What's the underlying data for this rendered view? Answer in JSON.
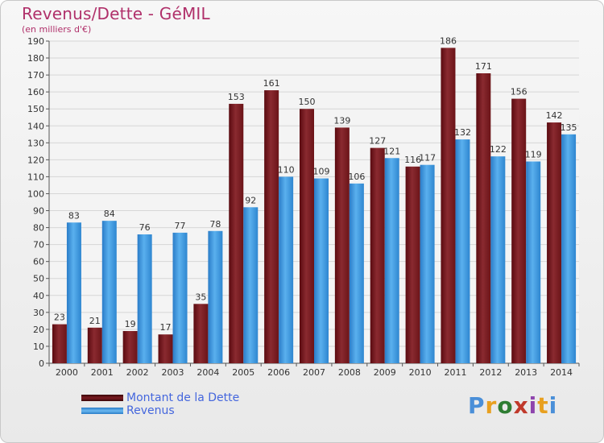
{
  "title": "Revenus/Dette - GéMIL",
  "subtitle": "(en milliers d'€)",
  "logo": {
    "text": "Proxiti",
    "colors": [
      "#4a8fd8",
      "#e8a020",
      "#2e7d32",
      "#c0392b",
      "#8e44ad",
      "#e8a020",
      "#4a8fd8"
    ]
  },
  "legend": [
    {
      "label": "Montant de la Dette",
      "color": "#6b0f14"
    },
    {
      "label": "Revenus",
      "color": "#3a94dc"
    }
  ],
  "chart_data": {
    "type": "bar",
    "title": "Revenus/Dette - GéMIL",
    "subtitle": "(en milliers d'€)",
    "categories": [
      "2000",
      "2001",
      "2002",
      "2003",
      "2004",
      "2005",
      "2006",
      "2007",
      "2008",
      "2009",
      "2010",
      "2011",
      "2012",
      "2013",
      "2014"
    ],
    "series": [
      {
        "name": "Montant de la Dette",
        "color": "#7a1a20",
        "values": [
          23,
          21,
          19,
          17,
          35,
          153,
          161,
          150,
          139,
          127,
          116,
          186,
          171,
          156,
          142
        ]
      },
      {
        "name": "Revenus",
        "color": "#3a94dc",
        "values": [
          83,
          84,
          76,
          77,
          78,
          92,
          110,
          109,
          106,
          121,
          117,
          132,
          122,
          119,
          135
        ]
      }
    ],
    "ylim": [
      0,
      190
    ],
    "yticks": [
      0,
      10,
      20,
      30,
      40,
      50,
      60,
      70,
      80,
      90,
      100,
      110,
      120,
      130,
      140,
      150,
      160,
      170,
      180,
      190
    ],
    "grid": true,
    "legend_position": "bottom-left"
  }
}
